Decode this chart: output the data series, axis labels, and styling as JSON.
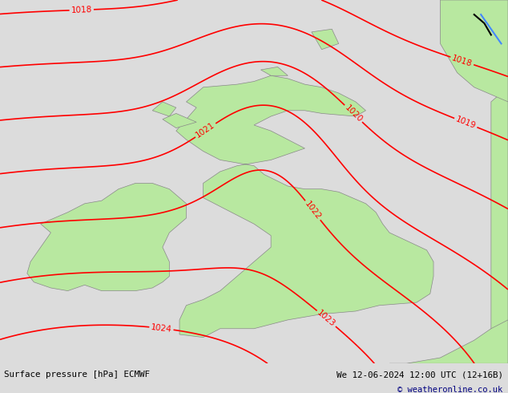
{
  "title_left": "Surface pressure [hPa] ECMWF",
  "title_right": "We 12-06-2024 12:00 UTC (12+16B)",
  "copyright": "© weatheronline.co.uk",
  "bg_color": "#dcdcdc",
  "land_color": "#b8e8a0",
  "coast_color": "#888888",
  "contour_color": "#ff0000",
  "contour_linewidth": 1.2,
  "label_fontsize": 7.5,
  "bottom_text_color": "#000000",
  "bottom_bg_color": "#d8d8d8",
  "lon_min": -11.0,
  "lon_max": 4.0,
  "lat_min": 49.0,
  "lat_max": 61.5,
  "contour_levels": [
    1018,
    1019,
    1020,
    1021,
    1022,
    1023,
    1024
  ]
}
